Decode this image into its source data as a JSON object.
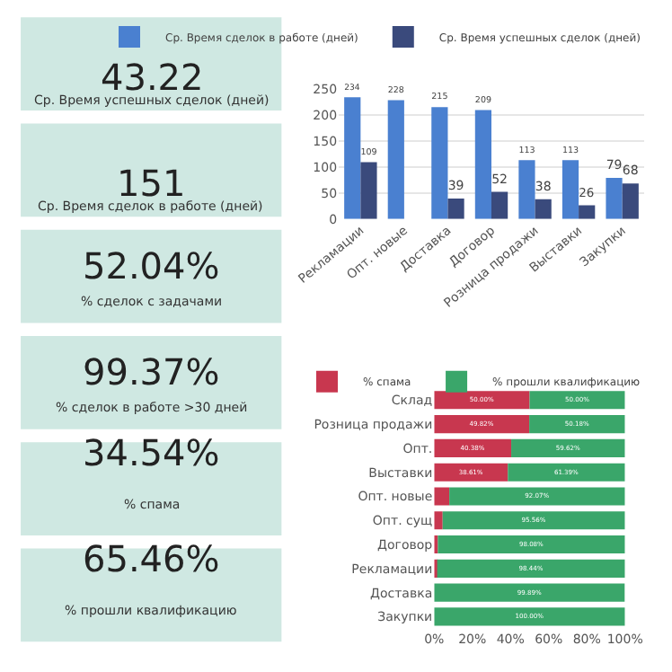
{
  "chart_data": [
    {
      "type": "other",
      "annotations": [
        "43.22",
        "Ср. Время успешных сделок (дней)",
        "151",
        "Ср. Время сделок в работе (дней)",
        "52.04%",
        "% сделок с задачами",
        "99.37%",
        "% сделок в работе >30 дней",
        "34.54%",
        "% спама",
        "65.46%",
        "% прошли квалификацию"
      ]
    },
    {
      "type": "bar",
      "categories": [
        "Рекламации",
        "Опт. новые",
        "Доставка",
        "Договор",
        "Розница продажи",
        "Выставки",
        "Закупки"
      ],
      "series": [
        {
          "name": "Ср. Время сделок в работе (дней)",
          "color": "#4a80d0",
          "values": [
            234,
            228,
            215,
            209,
            113,
            113,
            79
          ]
        },
        {
          "name": "Ср. Время успешных сделок (дней)",
          "color": "#3a4a7c",
          "values": [
            109,
            null,
            39,
            52,
            38,
            26,
            68
          ]
        }
      ],
      "ylim": [
        0,
        250
      ],
      "yticks": [
        0,
        50,
        100,
        150,
        200,
        250
      ],
      "grid": "y",
      "legend": "top left",
      "data_labels": true
    },
    {
      "type": "bar",
      "orientation": "horizontal",
      "stacked": true,
      "categories": [
        "Склад",
        "Розница продажи",
        "Опт.",
        "Выставки",
        "Опт. новые",
        "Опт. сущ",
        "Договор",
        "Рекламации",
        "Доставка",
        "Закупки"
      ],
      "series": [
        {
          "name": "% спама",
          "color": "#c8374f",
          "values": [
            50.0,
            49.82,
            40.38,
            38.61,
            7.93,
            4.44,
            1.92,
            1.56,
            null,
            0
          ],
          "value_labels": [
            "50.00%",
            "49.82%",
            "40.38%",
            "38.61%",
            null,
            null,
            null,
            null,
            null,
            null
          ]
        },
        {
          "name": "% прошли квалификацию",
          "color": "#3aa66a",
          "values": [
            50.0,
            50.18,
            59.62,
            61.39,
            92.07,
            95.56,
            98.08,
            98.44,
            99.89,
            100
          ],
          "value_labels": [
            "50.00%",
            "50.18%",
            "59.62%",
            "61.39%",
            "92.07%",
            "95.56%",
            "98.08%",
            "98.44%",
            "99.89%",
            "100.00%"
          ]
        }
      ],
      "xlim": [
        0,
        100
      ],
      "xticks": [
        {
          "value": 0,
          "label": "0%"
        },
        {
          "value": 20,
          "label": "20%"
        },
        {
          "value": 40,
          "label": "40%"
        },
        {
          "value": 60,
          "label": "60%"
        },
        {
          "value": 80,
          "label": "80%"
        },
        {
          "value": 100,
          "label": "100%"
        }
      ],
      "legend": "top left"
    }
  ]
}
